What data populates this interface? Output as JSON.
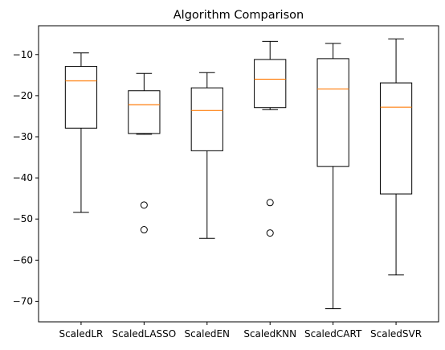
{
  "chart_data": {
    "type": "box",
    "title": "Algorithm Comparison",
    "xlabel": "",
    "ylabel": "",
    "ylim": [
      -75,
      -3
    ],
    "yticks": [
      -70,
      -60,
      -50,
      -40,
      -30,
      -20,
      -10
    ],
    "grid": false,
    "box_color": "#000000",
    "median_color": "#ff7f0e",
    "boxes": [
      {
        "label": "ScaledLR",
        "whisker_low": -48.4,
        "q1": -27.9,
        "median": -16.4,
        "q3": -12.9,
        "whisker_high": -9.6,
        "outliers": []
      },
      {
        "label": "ScaledLASSO",
        "whisker_low": -29.4,
        "q1": -29.2,
        "median": -22.2,
        "q3": -18.8,
        "whisker_high": -14.6,
        "outliers": [
          -46.6,
          -52.6
        ]
      },
      {
        "label": "ScaledEN",
        "whisker_low": -54.7,
        "q1": -33.4,
        "median": -23.6,
        "q3": -18.1,
        "whisker_high": -14.4,
        "outliers": []
      },
      {
        "label": "ScaledKNN",
        "whisker_low": -23.4,
        "q1": -22.9,
        "median": -16.0,
        "q3": -11.2,
        "whisker_high": -6.8,
        "outliers": [
          -46.0,
          -53.4
        ]
      },
      {
        "label": "ScaledCART",
        "whisker_low": -71.8,
        "q1": -37.2,
        "median": -18.4,
        "q3": -11.0,
        "whisker_high": -7.3,
        "outliers": []
      },
      {
        "label": "ScaledSVR",
        "whisker_low": -63.6,
        "q1": -43.9,
        "median": -22.8,
        "q3": -16.9,
        "whisker_high": -6.2,
        "outliers": []
      }
    ]
  }
}
